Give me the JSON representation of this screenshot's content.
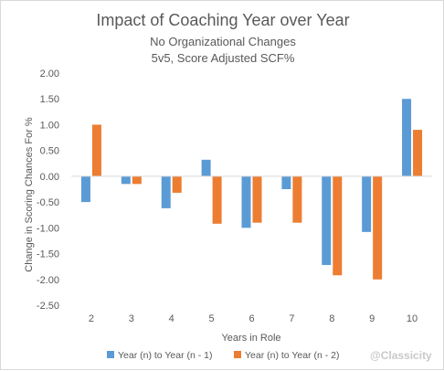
{
  "chart_data": {
    "type": "bar",
    "title": "Impact of Coaching Year over Year",
    "subtitles": [
      "No Organizational Changes",
      "5v5, Score Adjusted SCF%"
    ],
    "xlabel": "Years in Role",
    "ylabel": "Change in Scoring Chances For %",
    "categories": [
      "2",
      "3",
      "4",
      "5",
      "6",
      "7",
      "8",
      "9",
      "10"
    ],
    "ylim": [
      -2.5,
      2.0
    ],
    "yticks": [
      2.0,
      1.5,
      1.0,
      0.5,
      0.0,
      -0.5,
      -1.0,
      -1.5,
      -2.0,
      -2.5
    ],
    "ytick_labels": [
      "2.00",
      "1.50",
      "1.00",
      "0.50",
      "0.00",
      "-0.50",
      "-1.00",
      "-1.50",
      "-2.00",
      "-2.50"
    ],
    "grid": false,
    "legend_position": "bottom",
    "series": [
      {
        "name": "Year (n) to Year (n - 1)",
        "color": "#5b9bd5",
        "values": [
          -0.5,
          -0.15,
          -0.62,
          0.32,
          -1.0,
          -0.25,
          -1.72,
          -1.08,
          1.5
        ]
      },
      {
        "name": "Year (n) to Year (n - 2)",
        "color": "#ed7d31",
        "values": [
          1.0,
          -0.15,
          -0.32,
          -0.92,
          -0.9,
          -0.9,
          -1.92,
          -2.0,
          0.9
        ]
      }
    ]
  },
  "watermark": "@Classicity"
}
